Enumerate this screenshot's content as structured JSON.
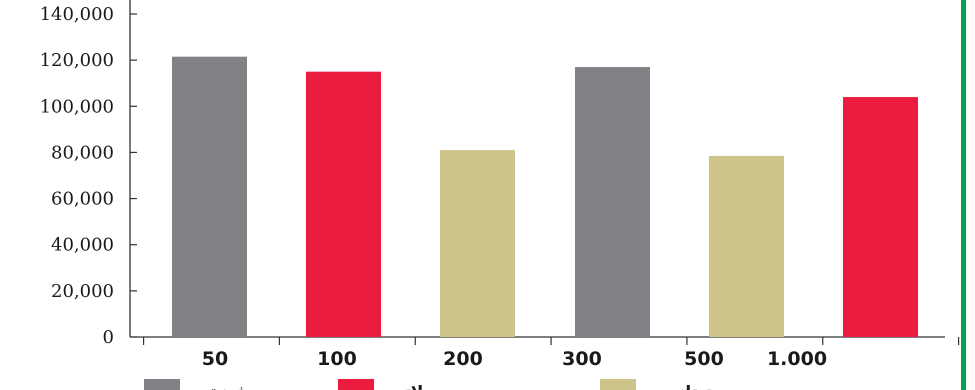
{
  "chart_data": {
    "type": "bar",
    "title": "",
    "xlabel": "",
    "ylabel": "",
    "ylim": [
      0,
      140000
    ],
    "yticks": [
      0,
      20000,
      40000,
      60000,
      80000,
      100000,
      120000,
      140000
    ],
    "ytick_labels": [
      "0",
      "20,000",
      "40,000",
      "60,000",
      "80,000",
      "100,000",
      "120,000",
      "140,000"
    ],
    "xtick_labels": [
      "50",
      "100",
      "200",
      "300",
      "500",
      "1.000"
    ],
    "bars": [
      {
        "value": 121500,
        "color": "#818285"
      },
      {
        "value": 115000,
        "color": "#ec1c40"
      },
      {
        "value": 81000,
        "color": "#cec389"
      },
      {
        "value": 117000,
        "color": "#818285"
      },
      {
        "value": 78500,
        "color": "#cec389"
      },
      {
        "value": 104000,
        "color": "#ec1c40"
      }
    ],
    "legend": [
      {
        "label": "فضة",
        "color": "#818285"
      },
      {
        "label": "بلاتين",
        "color": "#ec1c40"
      },
      {
        "label": "تيتانيوم",
        "color": "#cec389"
      }
    ],
    "grid": false,
    "legend_position": "bottom"
  },
  "colors": {
    "frame": "#00a651"
  }
}
